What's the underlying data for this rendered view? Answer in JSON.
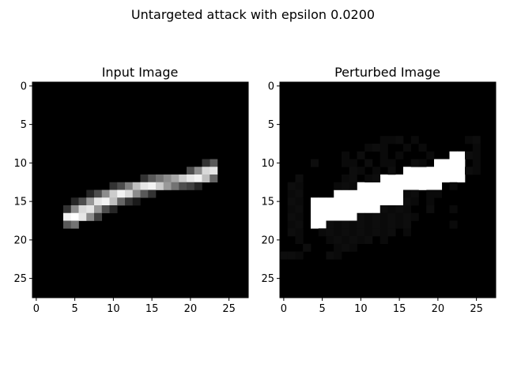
{
  "figure": {
    "suptitle": "Untargeted attack with epsilon 0.0200"
  },
  "chart_data": [
    {
      "type": "heatmap",
      "title": "Input Image",
      "colormap": "gray",
      "value_range": [
        0,
        1
      ],
      "shape": [
        28,
        28
      ],
      "xticks": [
        0,
        5,
        10,
        15,
        20,
        25
      ],
      "yticks": [
        0,
        5,
        10,
        15,
        20,
        25
      ],
      "background": 0,
      "pixels": [
        [
          10,
          23,
          0.35
        ],
        [
          10,
          22,
          0.2
        ],
        [
          11,
          20,
          0.3
        ],
        [
          11,
          21,
          0.55
        ],
        [
          11,
          22,
          0.85
        ],
        [
          11,
          23,
          0.9
        ],
        [
          12,
          14,
          0.2
        ],
        [
          12,
          15,
          0.35
        ],
        [
          12,
          16,
          0.45
        ],
        [
          12,
          17,
          0.55
        ],
        [
          12,
          18,
          0.65
        ],
        [
          12,
          19,
          0.8
        ],
        [
          12,
          20,
          0.9
        ],
        [
          12,
          21,
          0.95
        ],
        [
          12,
          22,
          0.75
        ],
        [
          12,
          23,
          0.4
        ],
        [
          13,
          10,
          0.2
        ],
        [
          13,
          11,
          0.3
        ],
        [
          13,
          12,
          0.5
        ],
        [
          13,
          13,
          0.75
        ],
        [
          13,
          14,
          0.9
        ],
        [
          13,
          15,
          0.95
        ],
        [
          13,
          16,
          0.8
        ],
        [
          13,
          17,
          0.6
        ],
        [
          13,
          18,
          0.45
        ],
        [
          13,
          19,
          0.3
        ],
        [
          13,
          20,
          0.25
        ],
        [
          13,
          21,
          0.15
        ],
        [
          14,
          7,
          0.15
        ],
        [
          14,
          8,
          0.3
        ],
        [
          14,
          9,
          0.55
        ],
        [
          14,
          10,
          0.8
        ],
        [
          14,
          11,
          0.95
        ],
        [
          14,
          12,
          0.85
        ],
        [
          14,
          13,
          0.55
        ],
        [
          14,
          14,
          0.35
        ],
        [
          14,
          15,
          0.2
        ],
        [
          15,
          5,
          0.15
        ],
        [
          15,
          6,
          0.3
        ],
        [
          15,
          7,
          0.6
        ],
        [
          15,
          8,
          0.9
        ],
        [
          15,
          9,
          0.95
        ],
        [
          15,
          10,
          0.75
        ],
        [
          15,
          11,
          0.4
        ],
        [
          15,
          12,
          0.2
        ],
        [
          15,
          13,
          0.1
        ],
        [
          16,
          4,
          0.2
        ],
        [
          16,
          5,
          0.55
        ],
        [
          16,
          6,
          0.85
        ],
        [
          16,
          7,
          0.9
        ],
        [
          16,
          8,
          0.6
        ],
        [
          16,
          9,
          0.3
        ],
        [
          16,
          10,
          0.15
        ],
        [
          17,
          4,
          0.95
        ],
        [
          17,
          5,
          1.0
        ],
        [
          17,
          6,
          0.9
        ],
        [
          17,
          7,
          0.55
        ],
        [
          17,
          8,
          0.25
        ],
        [
          18,
          4,
          0.35
        ],
        [
          18,
          5,
          0.45
        ]
      ]
    },
    {
      "type": "heatmap",
      "title": "Perturbed Image",
      "colormap": "gray",
      "value_range": [
        0,
        1
      ],
      "shape": [
        28,
        28
      ],
      "xticks": [
        0,
        5,
        10,
        15,
        20,
        25
      ],
      "yticks": [
        0,
        5,
        10,
        15,
        20,
        25
      ],
      "background": 0,
      "pixels": [
        [
          9,
          22,
          1
        ],
        [
          9,
          23,
          1
        ],
        [
          10,
          20,
          1
        ],
        [
          10,
          21,
          1
        ],
        [
          10,
          22,
          1
        ],
        [
          10,
          23,
          1
        ],
        [
          11,
          16,
          1
        ],
        [
          11,
          17,
          1
        ],
        [
          11,
          18,
          1
        ],
        [
          11,
          19,
          1
        ],
        [
          11,
          20,
          1
        ],
        [
          11,
          21,
          1
        ],
        [
          11,
          22,
          1
        ],
        [
          11,
          23,
          1
        ],
        [
          12,
          13,
          1
        ],
        [
          12,
          14,
          1
        ],
        [
          12,
          15,
          1
        ],
        [
          12,
          16,
          1
        ],
        [
          12,
          17,
          1
        ],
        [
          12,
          18,
          1
        ],
        [
          12,
          19,
          1
        ],
        [
          12,
          20,
          1
        ],
        [
          12,
          21,
          1
        ],
        [
          12,
          22,
          1
        ],
        [
          12,
          23,
          1
        ],
        [
          13,
          10,
          1
        ],
        [
          13,
          11,
          1
        ],
        [
          13,
          12,
          1
        ],
        [
          13,
          13,
          1
        ],
        [
          13,
          14,
          1
        ],
        [
          13,
          15,
          1
        ],
        [
          13,
          16,
          1
        ],
        [
          13,
          17,
          1
        ],
        [
          13,
          18,
          1
        ],
        [
          13,
          19,
          1
        ],
        [
          13,
          20,
          1
        ],
        [
          14,
          7,
          1
        ],
        [
          14,
          8,
          1
        ],
        [
          14,
          9,
          1
        ],
        [
          14,
          10,
          1
        ],
        [
          14,
          11,
          1
        ],
        [
          14,
          12,
          1
        ],
        [
          14,
          13,
          1
        ],
        [
          14,
          14,
          1
        ],
        [
          14,
          15,
          1
        ],
        [
          15,
          4,
          1
        ],
        [
          15,
          5,
          1
        ],
        [
          15,
          6,
          1
        ],
        [
          15,
          7,
          1
        ],
        [
          15,
          8,
          1
        ],
        [
          15,
          9,
          1
        ],
        [
          15,
          10,
          1
        ],
        [
          15,
          11,
          1
        ],
        [
          15,
          12,
          1
        ],
        [
          15,
          13,
          1
        ],
        [
          15,
          14,
          1
        ],
        [
          15,
          15,
          1
        ],
        [
          16,
          4,
          1
        ],
        [
          16,
          5,
          1
        ],
        [
          16,
          6,
          1
        ],
        [
          16,
          7,
          1
        ],
        [
          16,
          8,
          1
        ],
        [
          16,
          9,
          1
        ],
        [
          16,
          10,
          1
        ],
        [
          16,
          11,
          1
        ],
        [
          16,
          12,
          1
        ],
        [
          17,
          4,
          1
        ],
        [
          17,
          5,
          1
        ],
        [
          17,
          6,
          1
        ],
        [
          17,
          7,
          1
        ],
        [
          17,
          8,
          1
        ],
        [
          17,
          9,
          1
        ],
        [
          18,
          4,
          1
        ],
        [
          18,
          5,
          1
        ],
        [
          7,
          13,
          0.04
        ],
        [
          7,
          14,
          0.04
        ],
        [
          7,
          15,
          0.05
        ],
        [
          7,
          17,
          0.04
        ],
        [
          7,
          24,
          0.04
        ],
        [
          7,
          25,
          0.05
        ],
        [
          8,
          11,
          0.04
        ],
        [
          8,
          12,
          0.05
        ],
        [
          8,
          13,
          0.04
        ],
        [
          8,
          16,
          0.04
        ],
        [
          8,
          18,
          0.04
        ],
        [
          8,
          25,
          0.04
        ],
        [
          9,
          8,
          0.04
        ],
        [
          9,
          10,
          0.05
        ],
        [
          9,
          13,
          0.04
        ],
        [
          9,
          15,
          0.04
        ],
        [
          9,
          19,
          0.04
        ],
        [
          9,
          24,
          0.05
        ],
        [
          9,
          25,
          0.04
        ],
        [
          10,
          4,
          0.05
        ],
        [
          10,
          8,
          0.04
        ],
        [
          10,
          9,
          0.04
        ],
        [
          10,
          11,
          0.05
        ],
        [
          10,
          13,
          0.04
        ],
        [
          10,
          14,
          0.04
        ],
        [
          10,
          17,
          0.05
        ],
        [
          10,
          18,
          0.04
        ],
        [
          10,
          25,
          0.04
        ],
        [
          11,
          9,
          0.05
        ],
        [
          11,
          10,
          0.04
        ],
        [
          11,
          12,
          0.04
        ],
        [
          11,
          14,
          0.05
        ],
        [
          11,
          24,
          0.05
        ],
        [
          11,
          25,
          0.04
        ],
        [
          12,
          2,
          0.05
        ],
        [
          12,
          8,
          0.04
        ],
        [
          12,
          9,
          0.05
        ],
        [
          12,
          11,
          0.04
        ],
        [
          12,
          12,
          0.05
        ],
        [
          13,
          1,
          0.05
        ],
        [
          13,
          2,
          0.04
        ],
        [
          13,
          7,
          0.04
        ],
        [
          13,
          8,
          0.05
        ],
        [
          13,
          9,
          0.04
        ],
        [
          13,
          22,
          0.04
        ],
        [
          14,
          1,
          0.04
        ],
        [
          14,
          2,
          0.05
        ],
        [
          14,
          16,
          0.04
        ],
        [
          14,
          17,
          0.05
        ],
        [
          14,
          19,
          0.04
        ],
        [
          14,
          20,
          0.04
        ],
        [
          15,
          1,
          0.05
        ],
        [
          15,
          2,
          0.04
        ],
        [
          15,
          16,
          0.05
        ],
        [
          15,
          17,
          0.04
        ],
        [
          15,
          19,
          0.04
        ],
        [
          16,
          1,
          0.04
        ],
        [
          16,
          2,
          0.05
        ],
        [
          16,
          13,
          0.05
        ],
        [
          16,
          14,
          0.04
        ],
        [
          16,
          15,
          0.05
        ],
        [
          16,
          16,
          0.04
        ],
        [
          16,
          19,
          0.05
        ],
        [
          16,
          22,
          0.04
        ],
        [
          17,
          1,
          0.05
        ],
        [
          17,
          2,
          0.04
        ],
        [
          17,
          10,
          0.05
        ],
        [
          17,
          11,
          0.04
        ],
        [
          17,
          12,
          0.05
        ],
        [
          17,
          13,
          0.04
        ],
        [
          17,
          14,
          0.05
        ],
        [
          17,
          15,
          0.04
        ],
        [
          17,
          16,
          0.05
        ],
        [
          17,
          17,
          0.04
        ],
        [
          18,
          1,
          0.04
        ],
        [
          18,
          2,
          0.05
        ],
        [
          18,
          6,
          0.05
        ],
        [
          18,
          7,
          0.04
        ],
        [
          18,
          8,
          0.05
        ],
        [
          18,
          9,
          0.04
        ],
        [
          18,
          10,
          0.05
        ],
        [
          18,
          11,
          0.04
        ],
        [
          18,
          12,
          0.05
        ],
        [
          18,
          13,
          0.04
        ],
        [
          18,
          14,
          0.05
        ],
        [
          18,
          15,
          0.04
        ],
        [
          18,
          16,
          0.05
        ],
        [
          18,
          22,
          0.04
        ],
        [
          19,
          1,
          0.05
        ],
        [
          19,
          2,
          0.04
        ],
        [
          19,
          5,
          0.04
        ],
        [
          19,
          6,
          0.05
        ],
        [
          19,
          7,
          0.04
        ],
        [
          19,
          8,
          0.05
        ],
        [
          19,
          9,
          0.04
        ],
        [
          19,
          10,
          0.05
        ],
        [
          19,
          11,
          0.04
        ],
        [
          19,
          12,
          0.05
        ],
        [
          19,
          13,
          0.04
        ],
        [
          19,
          14,
          0.05
        ],
        [
          19,
          16,
          0.04
        ],
        [
          20,
          2,
          0.04
        ],
        [
          20,
          6,
          0.04
        ],
        [
          20,
          7,
          0.05
        ],
        [
          20,
          8,
          0.04
        ],
        [
          20,
          9,
          0.05
        ],
        [
          20,
          10,
          0.04
        ],
        [
          20,
          11,
          0.05
        ],
        [
          20,
          13,
          0.04
        ],
        [
          21,
          3,
          0.05
        ],
        [
          21,
          7,
          0.04
        ],
        [
          21,
          8,
          0.05
        ],
        [
          21,
          9,
          0.04
        ],
        [
          22,
          0,
          0.05
        ],
        [
          22,
          1,
          0.05
        ],
        [
          22,
          2,
          0.04
        ],
        [
          22,
          6,
          0.05
        ],
        [
          22,
          7,
          0.04
        ]
      ]
    }
  ]
}
